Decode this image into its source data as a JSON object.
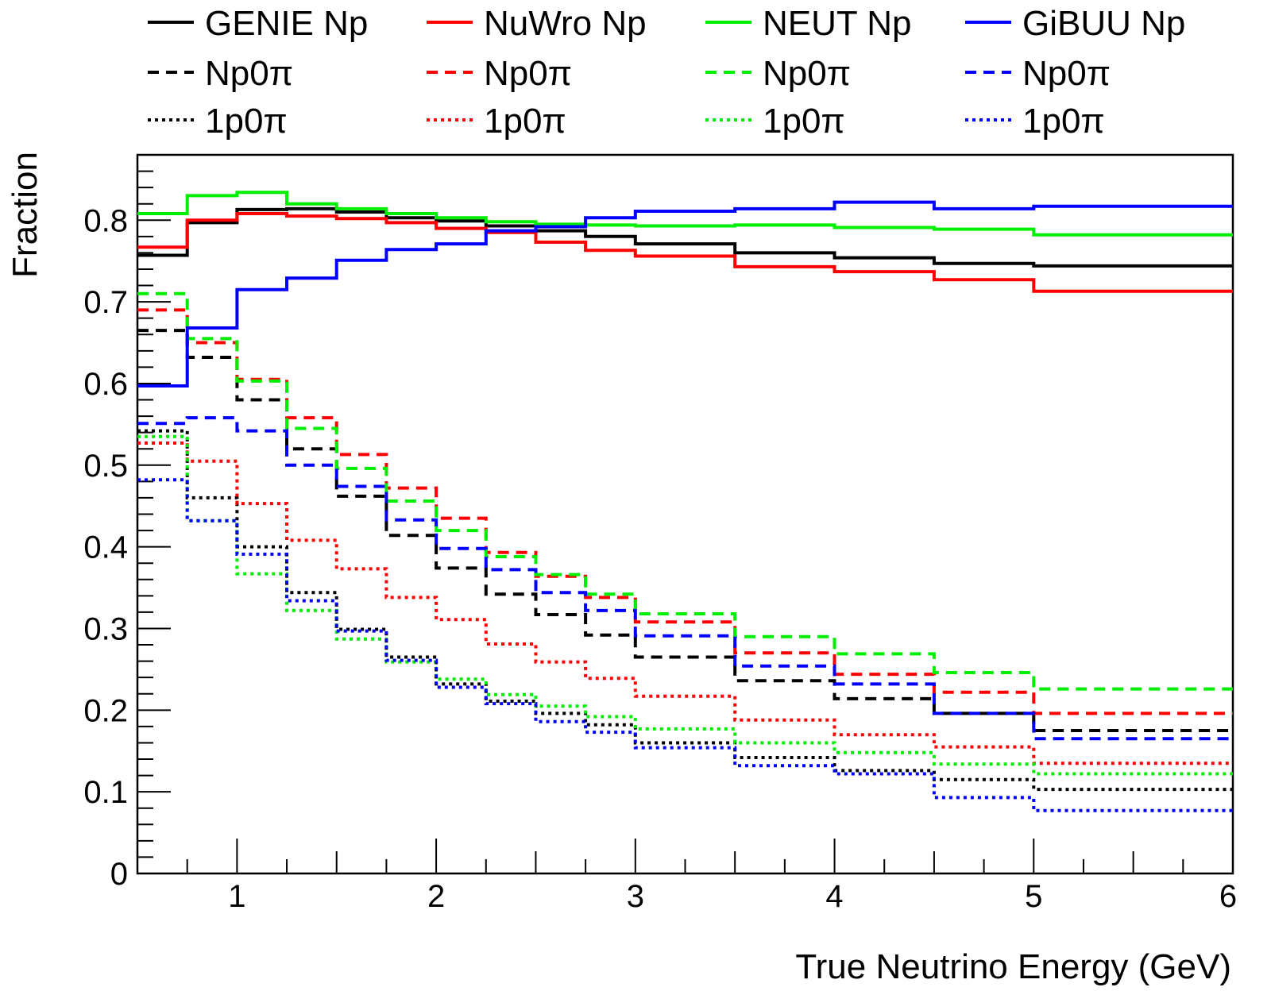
{
  "chart_data": {
    "type": "line",
    "style": "step-histogram",
    "title": "",
    "xlabel": "True Neutrino Energy (GeV)",
    "ylabel": "Fraction",
    "xlim": [
      0.5,
      6
    ],
    "ylim": [
      0,
      0.88
    ],
    "xticks": [
      1,
      2,
      3,
      4,
      5,
      6
    ],
    "yticks": [
      0,
      0.1,
      0.2,
      0.3,
      0.4,
      0.5,
      0.6,
      0.7,
      0.8
    ],
    "xtick_labels": [
      "1",
      "2",
      "3",
      "4",
      "5",
      "6"
    ],
    "ytick_labels": [
      "0",
      "0.1",
      "0.2",
      "0.3",
      "0.4",
      "0.5",
      "0.6",
      "0.7",
      "0.8"
    ],
    "bin_edges": [
      0.5,
      0.75,
      1.0,
      1.25,
      1.5,
      1.75,
      2.0,
      2.25,
      2.5,
      2.75,
      3.0,
      3.5,
      4.0,
      4.5,
      5.0,
      6.0
    ],
    "legend": {
      "placement": "top",
      "columns": 4
    },
    "series": [
      {
        "name": "GENIE Np",
        "generator": "GENIE",
        "label": "GENIE Np",
        "color": "#000000",
        "linestyle": "solid",
        "values": [
          0.757,
          0.797,
          0.813,
          0.814,
          0.81,
          0.803,
          0.799,
          0.793,
          0.787,
          0.78,
          0.771,
          0.76,
          0.754,
          0.747,
          0.744
        ]
      },
      {
        "name": "GENIE Np0π",
        "generator": "GENIE",
        "label": "Np0π",
        "color": "#000000",
        "linestyle": "dashed",
        "values": [
          0.665,
          0.632,
          0.58,
          0.52,
          0.462,
          0.414,
          0.374,
          0.342,
          0.317,
          0.292,
          0.265,
          0.236,
          0.214,
          0.196,
          0.175
        ]
      },
      {
        "name": "GENIE 1p0π",
        "generator": "GENIE",
        "label": "1p0π",
        "color": "#000000",
        "linestyle": "dotted",
        "values": [
          0.542,
          0.46,
          0.4,
          0.344,
          0.299,
          0.265,
          0.232,
          0.211,
          0.196,
          0.182,
          0.16,
          0.142,
          0.126,
          0.115,
          0.103
        ]
      },
      {
        "name": "NuWro Np",
        "generator": "NuWro",
        "label": "NuWro Np",
        "color": "#ff0000",
        "linestyle": "solid",
        "values": [
          0.767,
          0.8,
          0.808,
          0.805,
          0.802,
          0.797,
          0.79,
          0.785,
          0.773,
          0.763,
          0.756,
          0.743,
          0.737,
          0.727,
          0.713
        ]
      },
      {
        "name": "NuWro Np0π",
        "generator": "NuWro",
        "label": "Np0π",
        "color": "#ff0000",
        "linestyle": "dashed",
        "values": [
          0.69,
          0.65,
          0.605,
          0.558,
          0.513,
          0.472,
          0.435,
          0.393,
          0.364,
          0.338,
          0.308,
          0.27,
          0.244,
          0.222,
          0.196
        ]
      },
      {
        "name": "NuWro 1p0π",
        "generator": "NuWro",
        "label": "1p0π",
        "color": "#ff0000",
        "linestyle": "dotted",
        "values": [
          0.527,
          0.505,
          0.453,
          0.408,
          0.373,
          0.338,
          0.311,
          0.281,
          0.259,
          0.239,
          0.217,
          0.188,
          0.17,
          0.155,
          0.135
        ]
      },
      {
        "name": "NEUT Np",
        "generator": "NEUT",
        "label": "NEUT Np",
        "color": "#00ee00",
        "linestyle": "solid",
        "values": [
          0.808,
          0.83,
          0.834,
          0.82,
          0.814,
          0.808,
          0.803,
          0.798,
          0.795,
          0.794,
          0.793,
          0.794,
          0.791,
          0.789,
          0.782
        ]
      },
      {
        "name": "NEUT Np0π",
        "generator": "NEUT",
        "label": "Np0π",
        "color": "#00ee00",
        "linestyle": "dashed",
        "values": [
          0.71,
          0.655,
          0.603,
          0.545,
          0.496,
          0.456,
          0.42,
          0.388,
          0.366,
          0.342,
          0.318,
          0.29,
          0.269,
          0.246,
          0.226
        ]
      },
      {
        "name": "NEUT 1p0π",
        "generator": "NEUT",
        "label": "1p0π",
        "color": "#00ee00",
        "linestyle": "dotted",
        "values": [
          0.535,
          0.432,
          0.367,
          0.322,
          0.287,
          0.259,
          0.238,
          0.219,
          0.205,
          0.192,
          0.177,
          0.16,
          0.148,
          0.134,
          0.122
        ]
      },
      {
        "name": "GiBUU Np",
        "generator": "GiBUU",
        "label": "GiBUU Np",
        "color": "#0000ff",
        "linestyle": "solid",
        "values": [
          0.597,
          0.668,
          0.715,
          0.729,
          0.751,
          0.764,
          0.771,
          0.787,
          0.792,
          0.803,
          0.811,
          0.814,
          0.822,
          0.814,
          0.817
        ]
      },
      {
        "name": "GiBUU Np0π",
        "generator": "GiBUU",
        "label": "Np0π",
        "color": "#0000ff",
        "linestyle": "dashed",
        "values": [
          0.551,
          0.558,
          0.542,
          0.5,
          0.474,
          0.433,
          0.398,
          0.372,
          0.344,
          0.322,
          0.291,
          0.254,
          0.232,
          0.196,
          0.165
        ]
      },
      {
        "name": "GiBUU 1p0π",
        "generator": "GiBUU",
        "label": "1p0π",
        "color": "#0000ff",
        "linestyle": "dotted",
        "values": [
          0.482,
          0.432,
          0.391,
          0.334,
          0.297,
          0.261,
          0.228,
          0.208,
          0.186,
          0.173,
          0.154,
          0.132,
          0.122,
          0.093,
          0.077
        ]
      }
    ]
  }
}
